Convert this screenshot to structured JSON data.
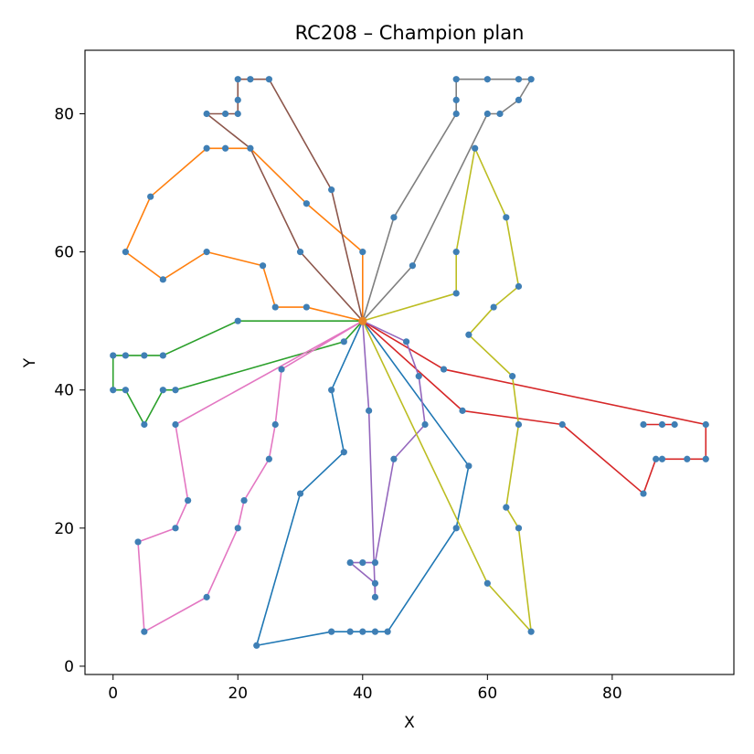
{
  "chart_data": {
    "type": "scatter",
    "title": "RC208 – Champion plan",
    "xlabel": "X",
    "ylabel": "Y",
    "xlim": [
      -4.5,
      99.5
    ],
    "ylim": [
      -1.2,
      89.2
    ],
    "xticks": [
      0,
      20,
      40,
      60,
      80
    ],
    "yticks": [
      0,
      20,
      40,
      60,
      80
    ],
    "grid": false,
    "legend": "none",
    "depot": [
      40,
      50
    ],
    "point_color": "#3f7fb5",
    "routes": [
      {
        "color": "#1f77b4",
        "points": [
          [
            40,
            50
          ],
          [
            35,
            40
          ],
          [
            37,
            31
          ],
          [
            30,
            25
          ],
          [
            23,
            3
          ],
          [
            35,
            5
          ],
          [
            38,
            5
          ],
          [
            40,
            5
          ],
          [
            42,
            5
          ],
          [
            44,
            5
          ],
          [
            55,
            20
          ],
          [
            57,
            29
          ],
          [
            40,
            50
          ]
        ]
      },
      {
        "color": "#ff7f0e",
        "points": [
          [
            40,
            50
          ],
          [
            40,
            60
          ],
          [
            31,
            67
          ],
          [
            22,
            75
          ],
          [
            18,
            75
          ],
          [
            15,
            75
          ],
          [
            6,
            68
          ],
          [
            2,
            60
          ],
          [
            8,
            56
          ],
          [
            15,
            60
          ],
          [
            24,
            58
          ],
          [
            26,
            52
          ],
          [
            31,
            52
          ],
          [
            40,
            50
          ]
        ]
      },
      {
        "color": "#2ca02c",
        "points": [
          [
            40,
            50
          ],
          [
            20,
            50
          ],
          [
            8,
            45
          ],
          [
            5,
            45
          ],
          [
            2,
            45
          ],
          [
            0,
            45
          ],
          [
            0,
            40
          ],
          [
            2,
            40
          ],
          [
            5,
            35
          ],
          [
            8,
            40
          ],
          [
            10,
            40
          ],
          [
            37,
            47
          ],
          [
            40,
            50
          ]
        ]
      },
      {
        "color": "#d62728",
        "points": [
          [
            40,
            50
          ],
          [
            53,
            43
          ],
          [
            95,
            35
          ],
          [
            95,
            30
          ],
          [
            92,
            30
          ],
          [
            88,
            30
          ],
          [
            87,
            30
          ],
          [
            85,
            25
          ],
          [
            72,
            35
          ],
          [
            56,
            37
          ],
          [
            40,
            50
          ]
        ]
      },
      {
        "color": "#d62728",
        "points": [
          [
            85,
            35
          ],
          [
            88,
            35
          ],
          [
            90,
            35
          ]
        ]
      },
      {
        "color": "#9467bd",
        "points": [
          [
            40,
            50
          ],
          [
            47,
            47
          ],
          [
            49,
            42
          ],
          [
            50,
            35
          ],
          [
            45,
            30
          ],
          [
            42,
            15
          ],
          [
            40,
            15
          ],
          [
            38,
            15
          ],
          [
            42,
            12
          ],
          [
            42,
            10
          ],
          [
            41,
            37
          ],
          [
            40,
            50
          ]
        ]
      },
      {
        "color": "#8c564b",
        "points": [
          [
            40,
            50
          ],
          [
            35,
            69
          ],
          [
            25,
            85
          ],
          [
            22,
            85
          ],
          [
            20,
            85
          ],
          [
            20,
            82
          ],
          [
            20,
            80
          ],
          [
            18,
            80
          ],
          [
            15,
            80
          ],
          [
            22,
            75
          ],
          [
            30,
            60
          ],
          [
            40,
            50
          ]
        ]
      },
      {
        "color": "#e377c2",
        "points": [
          [
            40,
            50
          ],
          [
            27,
            43
          ],
          [
            26,
            35
          ],
          [
            25,
            30
          ],
          [
            21,
            24
          ],
          [
            20,
            20
          ],
          [
            15,
            10
          ],
          [
            5,
            5
          ],
          [
            4,
            18
          ],
          [
            10,
            20
          ],
          [
            12,
            24
          ],
          [
            10,
            35
          ],
          [
            40,
            50
          ]
        ]
      },
      {
        "color": "#7f7f7f",
        "points": [
          [
            40,
            50
          ],
          [
            48,
            58
          ],
          [
            60,
            80
          ],
          [
            62,
            80
          ],
          [
            65,
            82
          ],
          [
            67,
            85
          ],
          [
            65,
            85
          ],
          [
            60,
            85
          ],
          [
            55,
            85
          ],
          [
            55,
            82
          ],
          [
            55,
            80
          ],
          [
            45,
            65
          ],
          [
            40,
            50
          ]
        ]
      },
      {
        "color": "#bcbd22",
        "points": [
          [
            40,
            50
          ],
          [
            55,
            54
          ],
          [
            55,
            60
          ],
          [
            58,
            75
          ],
          [
            63,
            65
          ],
          [
            65,
            55
          ],
          [
            61,
            52
          ],
          [
            57,
            48
          ],
          [
            64,
            42
          ],
          [
            65,
            35
          ],
          [
            63,
            23
          ],
          [
            65,
            20
          ],
          [
            67,
            5
          ],
          [
            60,
            12
          ],
          [
            40,
            50
          ]
        ]
      }
    ]
  }
}
